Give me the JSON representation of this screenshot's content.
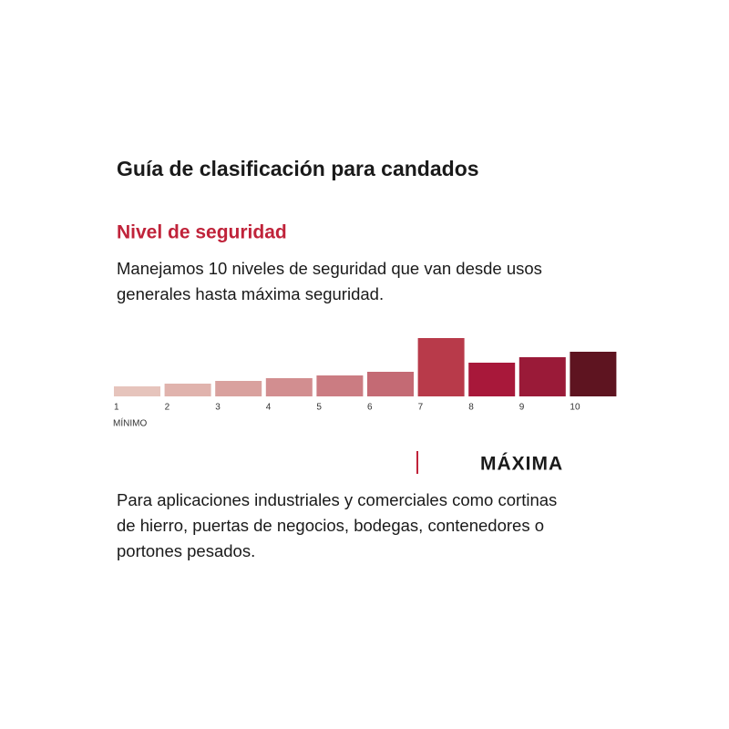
{
  "header": {
    "title": "Guía de clasificación para candados"
  },
  "section": {
    "heading": "Nivel de seguridad",
    "description_lines": [
      "Manejamos 10 niveles de seguridad que van desde usos",
      "generales hasta máxima seguridad."
    ]
  },
  "scale": {
    "levels": [
      "1",
      "2",
      "3",
      "4",
      "5",
      "6",
      "7",
      "8",
      "9",
      "10"
    ],
    "min_label": "MÍNIMO"
  },
  "rating": {
    "label": "MÁXIMA",
    "description_lines": [
      "Para aplicaciones industriales y comerciales como cortinas",
      "de hierro, puertas de negocios, bodegas, contenedores o",
      "portones pesados."
    ]
  }
}
